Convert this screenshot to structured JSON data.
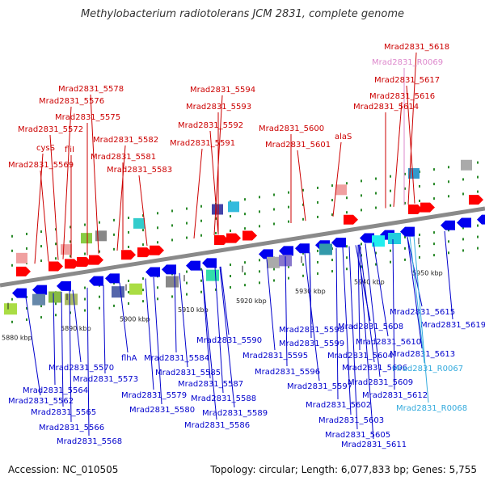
{
  "title": "Methylobacterium radiotolerans JCM 2831, complete genome",
  "footer": {
    "accession": "Accession: NC_010505",
    "topology": "Topology: circular; Length: 6,077,833 bp; Genes: 5,755"
  },
  "colors": {
    "forward_label": "#cc0000",
    "reverse_label": "#0000cc",
    "rna_forward_label": "#dd88cc",
    "rna_reverse_label": "#33aadd",
    "forward_gene": "#ff0000",
    "reverse_gene": "#0000ee",
    "backbone": "#8a8a8a",
    "track_dot": "#2a8a2a"
  },
  "scale_ticks": [
    "5880 kbp",
    "5890 kbp",
    "5900 kbp",
    "5910 kbp",
    "5920 kbp",
    "5930 kbp",
    "5940 kbp",
    "5950 kbp"
  ],
  "top_labels": [
    {
      "text": "Mrad2831_5618",
      "color": "#cc0000"
    },
    {
      "text": "Mrad2831_R0069",
      "color": "#dd88cc"
    },
    {
      "text": "Mrad2831_5617",
      "color": "#cc0000"
    },
    {
      "text": "Mrad2831_5616",
      "color": "#cc0000"
    },
    {
      "text": "Mrad2831_5614",
      "color": "#cc0000"
    },
    {
      "text": "Mrad2831_5578",
      "color": "#cc0000"
    },
    {
      "text": "Mrad2831_5576",
      "color": "#cc0000"
    },
    {
      "text": "Mrad2831_5575",
      "color": "#cc0000"
    },
    {
      "text": "Mrad2831_5572",
      "color": "#cc0000"
    },
    {
      "text": "cysS",
      "color": "#cc0000"
    },
    {
      "text": "fliI",
      "color": "#cc0000"
    },
    {
      "text": "Mrad2831_5569",
      "color": "#cc0000"
    },
    {
      "text": "Mrad2831_5582",
      "color": "#cc0000"
    },
    {
      "text": "Mrad2831_5581",
      "color": "#cc0000"
    },
    {
      "text": "Mrad2831_5583",
      "color": "#cc0000"
    },
    {
      "text": "Mrad2831_5594",
      "color": "#cc0000"
    },
    {
      "text": "Mrad2831_5593",
      "color": "#cc0000"
    },
    {
      "text": "Mrad2831_5592",
      "color": "#cc0000"
    },
    {
      "text": "Mrad2831_5591",
      "color": "#cc0000"
    },
    {
      "text": "Mrad2831_5600",
      "color": "#cc0000"
    },
    {
      "text": "Mrad2831_5601",
      "color": "#cc0000"
    },
    {
      "text": "alaS",
      "color": "#cc0000"
    }
  ],
  "bottom_labels": [
    {
      "text": "Mrad2831_5615",
      "color": "#0000cc"
    },
    {
      "text": "Mrad2831_5619",
      "color": "#0000cc"
    },
    {
      "text": "Mrad2831_5598",
      "color": "#0000cc"
    },
    {
      "text": "Mrad2831_5608",
      "color": "#0000cc"
    },
    {
      "text": "Mrad2831_5590",
      "color": "#0000cc"
    },
    {
      "text": "Mrad2831_5599",
      "color": "#0000cc"
    },
    {
      "text": "Mrad2831_5610",
      "color": "#0000cc"
    },
    {
      "text": "Mrad2831_5595",
      "color": "#0000cc"
    },
    {
      "text": "Mrad2831_5604",
      "color": "#0000cc"
    },
    {
      "text": "Mrad2831_5613",
      "color": "#0000cc"
    },
    {
      "text": "flhA",
      "color": "#0000cc"
    },
    {
      "text": "Mrad2831_5584",
      "color": "#0000cc"
    },
    {
      "text": "Mrad2831_5606",
      "color": "#0000cc"
    },
    {
      "text": "Mrad2831_5570",
      "color": "#0000cc"
    },
    {
      "text": "Mrad2831_5596",
      "color": "#0000cc"
    },
    {
      "text": "Mrad2831_R0067",
      "color": "#33aadd"
    },
    {
      "text": "Mrad2831_5585",
      "color": "#0000cc"
    },
    {
      "text": "Mrad2831_5573",
      "color": "#0000cc"
    },
    {
      "text": "Mrad2831_5609",
      "color": "#0000cc"
    },
    {
      "text": "Mrad2831_5587",
      "color": "#0000cc"
    },
    {
      "text": "Mrad2831_5564",
      "color": "#0000cc"
    },
    {
      "text": "Mrad2831_5597",
      "color": "#0000cc"
    },
    {
      "text": "Mrad2831_5579",
      "color": "#0000cc"
    },
    {
      "text": "Mrad2831_5612",
      "color": "#0000cc"
    },
    {
      "text": "Mrad2831_5562",
      "color": "#0000cc"
    },
    {
      "text": "Mrad2831_5588",
      "color": "#0000cc"
    },
    {
      "text": "Mrad2831_5602",
      "color": "#0000cc"
    },
    {
      "text": "Mrad2831_R0068",
      "color": "#33aadd"
    },
    {
      "text": "Mrad2831_5580",
      "color": "#0000cc"
    },
    {
      "text": "Mrad2831_5565",
      "color": "#0000cc"
    },
    {
      "text": "Mrad2831_5589",
      "color": "#0000cc"
    },
    {
      "text": "Mrad2831_5603",
      "color": "#0000cc"
    },
    {
      "text": "Mrad2831_5566",
      "color": "#0000cc"
    },
    {
      "text": "Mrad2831_5586",
      "color": "#0000cc"
    },
    {
      "text": "Mrad2831_5605",
      "color": "#0000cc"
    },
    {
      "text": "Mrad2831_5568",
      "color": "#0000cc"
    },
    {
      "text": "Mrad2831_5611",
      "color": "#0000cc"
    }
  ]
}
